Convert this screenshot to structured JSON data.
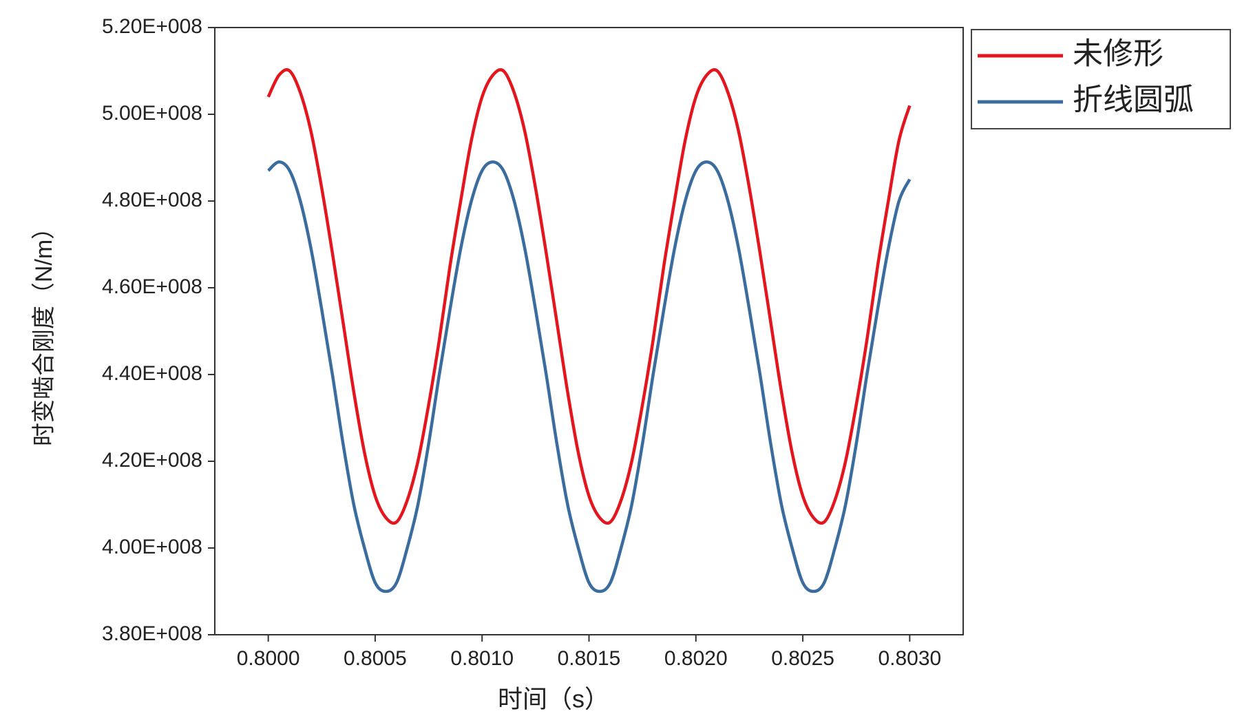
{
  "chart_data": {
    "type": "line",
    "x_label": "时间（s）",
    "y_label": "时变啮合刚度（N/m）",
    "x": [
      0.8,
      0.80005,
      0.8001,
      0.80015,
      0.8002,
      0.80025,
      0.8003,
      0.80035,
      0.8004,
      0.80045,
      0.8005,
      0.80055,
      0.8006,
      0.80065,
      0.8007,
      0.80075,
      0.8008,
      0.80085,
      0.8009,
      0.80095,
      0.801,
      0.80105,
      0.8011,
      0.80115,
      0.8012,
      0.80125,
      0.8013,
      0.80135,
      0.8014,
      0.80145,
      0.8015,
      0.80155,
      0.8016,
      0.80165,
      0.8017,
      0.80175,
      0.8018,
      0.80185,
      0.8019,
      0.80195,
      0.802,
      0.80205,
      0.8021,
      0.80215,
      0.8022,
      0.80225,
      0.8023,
      0.80235,
      0.8024,
      0.80245,
      0.8025,
      0.80255,
      0.8026,
      0.80265,
      0.8027,
      0.80275,
      0.8028,
      0.80285,
      0.8029,
      0.80295,
      0.803
    ],
    "series": [
      {
        "name": "未修形",
        "color": "#e3151d",
        "values": [
          504000000.0,
          509000000.0,
          510000000.0,
          505000000.0,
          496000000.0,
          483000000.0,
          468000000.0,
          452000000.0,
          436000000.0,
          422000000.0,
          412000000.0,
          407000000.0,
          406000000.0,
          411000000.0,
          420000000.0,
          433000000.0,
          448000000.0,
          465000000.0,
          480000000.0,
          494000000.0,
          504000000.0,
          509000000.0,
          510000000.0,
          505000000.0,
          496000000.0,
          483000000.0,
          468000000.0,
          452000000.0,
          436000000.0,
          422000000.0,
          412000000.0,
          407000000.0,
          406000000.0,
          411000000.0,
          420000000.0,
          433000000.0,
          448000000.0,
          465000000.0,
          480000000.0,
          494000000.0,
          504000000.0,
          509000000.0,
          510000000.0,
          505000000.0,
          496000000.0,
          483000000.0,
          468000000.0,
          452000000.0,
          436000000.0,
          422000000.0,
          412000000.0,
          407000000.0,
          406000000.0,
          411000000.0,
          420000000.0,
          433000000.0,
          448000000.0,
          465000000.0,
          480000000.0,
          494000000.0,
          502000000.0
        ]
      },
      {
        "name": "折线圆弧",
        "color": "#3a6d9e",
        "values": [
          487000000.0,
          489000000.0,
          487000000.0,
          480000000.0,
          469000000.0,
          455000000.0,
          440000000.0,
          424000000.0,
          410000000.0,
          400000000.0,
          392000000.0,
          390000000.0,
          392000000.0,
          400000000.0,
          410000000.0,
          424000000.0,
          440000000.0,
          455000000.0,
          469000000.0,
          480000000.0,
          487000000.0,
          489000000.0,
          487000000.0,
          480000000.0,
          469000000.0,
          455000000.0,
          440000000.0,
          424000000.0,
          410000000.0,
          400000000.0,
          392000000.0,
          390000000.0,
          392000000.0,
          400000000.0,
          410000000.0,
          424000000.0,
          440000000.0,
          455000000.0,
          469000000.0,
          480000000.0,
          487000000.0,
          489000000.0,
          487000000.0,
          480000000.0,
          469000000.0,
          455000000.0,
          440000000.0,
          424000000.0,
          410000000.0,
          400000000.0,
          392000000.0,
          390000000.0,
          392000000.0,
          400000000.0,
          410000000.0,
          424000000.0,
          440000000.0,
          455000000.0,
          469000000.0,
          480000000.0,
          485000000.0
        ]
      }
    ],
    "xlim": [
      0.79975,
      0.80325
    ],
    "xticks": [
      {
        "value": 0.8,
        "label": "0.8000"
      },
      {
        "value": 0.8005,
        "label": "0.8005"
      },
      {
        "value": 0.801,
        "label": "0.8010"
      },
      {
        "value": 0.8015,
        "label": "0.8015"
      },
      {
        "value": 0.802,
        "label": "0.8020"
      },
      {
        "value": 0.8025,
        "label": "0.8025"
      },
      {
        "value": 0.803,
        "label": "0.8030"
      }
    ],
    "ylim": [
      380000000.0,
      520000000.0
    ],
    "yticks": [
      {
        "value": 380000000.0,
        "label": "3.80E+008"
      },
      {
        "value": 400000000.0,
        "label": "4.00E+008"
      },
      {
        "value": 420000000.0,
        "label": "4.20E+008"
      },
      {
        "value": 440000000.0,
        "label": "4.40E+008"
      },
      {
        "value": 460000000.0,
        "label": "4.60E+008"
      },
      {
        "value": 480000000.0,
        "label": "4.80E+008"
      },
      {
        "value": 500000000.0,
        "label": "5.00E+008"
      },
      {
        "value": 520000000.0,
        "label": "5.20E+008"
      }
    ],
    "grid": false,
    "legend": "outside-top-right"
  }
}
